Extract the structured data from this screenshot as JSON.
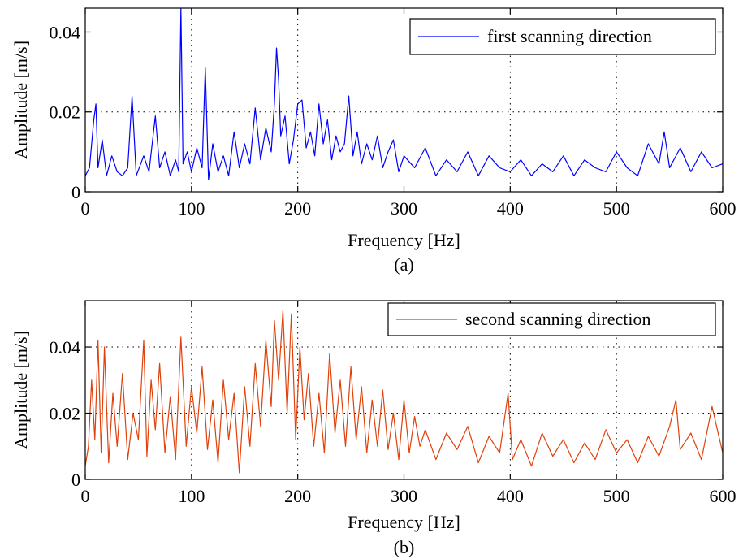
{
  "figure": {
    "caption_a": "(a)",
    "caption_b": "(b)"
  },
  "chart_data": [
    {
      "type": "line",
      "xlabel": "Frequency [Hz]",
      "ylabel": "Amplitude [m/s]",
      "xlim": [
        0,
        600
      ],
      "ylim": [
        0,
        0.046
      ],
      "xticks": [
        0,
        100,
        200,
        300,
        400,
        500,
        600
      ],
      "xtick_labels": [
        "0",
        "100",
        "200",
        "300",
        "400",
        "500",
        "600"
      ],
      "yticks": [
        0,
        0.02,
        0.04
      ],
      "ytick_labels": [
        "0",
        "0.02",
        "0.04"
      ],
      "grid": true,
      "legend": "top-right",
      "color": "#0000ff",
      "series": [
        {
          "name": "first scanning direction",
          "x": [
            0,
            4,
            8,
            10,
            12,
            16,
            20,
            25,
            30,
            35,
            40,
            44,
            48,
            55,
            60,
            66,
            70,
            75,
            80,
            85,
            88,
            90,
            92,
            96,
            100,
            105,
            110,
            113,
            116,
            120,
            125,
            130,
            135,
            140,
            145,
            150,
            155,
            160,
            165,
            170,
            175,
            178,
            180,
            182,
            184,
            188,
            192,
            196,
            200,
            204,
            208,
            212,
            216,
            220,
            224,
            228,
            232,
            236,
            240,
            244,
            248,
            252,
            256,
            260,
            265,
            270,
            275,
            280,
            285,
            290,
            295,
            300,
            310,
            320,
            330,
            340,
            350,
            360,
            370,
            380,
            390,
            400,
            410,
            420,
            430,
            440,
            450,
            460,
            470,
            480,
            490,
            500,
            510,
            520,
            530,
            540,
            545,
            550,
            560,
            570,
            580,
            590,
            600
          ],
          "y": [
            0.004,
            0.006,
            0.018,
            0.022,
            0.006,
            0.013,
            0.004,
            0.009,
            0.005,
            0.004,
            0.006,
            0.024,
            0.004,
            0.009,
            0.005,
            0.019,
            0.006,
            0.01,
            0.004,
            0.008,
            0.005,
            0.046,
            0.007,
            0.01,
            0.005,
            0.011,
            0.006,
            0.031,
            0.003,
            0.012,
            0.005,
            0.009,
            0.004,
            0.015,
            0.006,
            0.012,
            0.007,
            0.021,
            0.008,
            0.016,
            0.01,
            0.022,
            0.036,
            0.028,
            0.014,
            0.019,
            0.007,
            0.013,
            0.022,
            0.023,
            0.011,
            0.015,
            0.009,
            0.022,
            0.012,
            0.018,
            0.008,
            0.014,
            0.01,
            0.012,
            0.024,
            0.009,
            0.015,
            0.007,
            0.012,
            0.008,
            0.014,
            0.006,
            0.01,
            0.013,
            0.005,
            0.009,
            0.006,
            0.011,
            0.004,
            0.008,
            0.005,
            0.01,
            0.004,
            0.009,
            0.006,
            0.005,
            0.008,
            0.004,
            0.007,
            0.005,
            0.009,
            0.004,
            0.008,
            0.006,
            0.005,
            0.01,
            0.006,
            0.004,
            0.012,
            0.007,
            0.015,
            0.006,
            0.011,
            0.005,
            0.01,
            0.006,
            0.007
          ]
        }
      ]
    },
    {
      "type": "line",
      "xlabel": "Frequency [Hz]",
      "ylabel": "Amplitude [m/s]",
      "xlim": [
        0,
        600
      ],
      "ylim": [
        0,
        0.054
      ],
      "xticks": [
        0,
        100,
        200,
        300,
        400,
        500,
        600
      ],
      "xtick_labels": [
        "0",
        "100",
        "200",
        "300",
        "400",
        "500",
        "600"
      ],
      "yticks": [
        0,
        0.02,
        0.04
      ],
      "ytick_labels": [
        "0",
        "0.02",
        "0.04"
      ],
      "grid": true,
      "legend": "top-right",
      "color": "#e0400a",
      "series": [
        {
          "name": "second scanning direction",
          "x": [
            0,
            3,
            6,
            9,
            12,
            15,
            18,
            22,
            26,
            30,
            35,
            40,
            45,
            50,
            55,
            58,
            62,
            66,
            70,
            75,
            80,
            85,
            90,
            95,
            100,
            105,
            110,
            115,
            120,
            125,
            130,
            135,
            140,
            145,
            150,
            155,
            160,
            165,
            170,
            175,
            178,
            182,
            186,
            190,
            194,
            198,
            202,
            206,
            210,
            215,
            220,
            225,
            230,
            235,
            240,
            245,
            250,
            255,
            260,
            265,
            270,
            275,
            280,
            285,
            290,
            295,
            300,
            305,
            310,
            315,
            320,
            330,
            340,
            350,
            360,
            370,
            380,
            390,
            398,
            402,
            410,
            420,
            430,
            440,
            450,
            460,
            470,
            480,
            490,
            500,
            510,
            520,
            530,
            540,
            550,
            556,
            560,
            570,
            580,
            590,
            600
          ],
          "y": [
            0.004,
            0.01,
            0.03,
            0.012,
            0.042,
            0.008,
            0.04,
            0.005,
            0.026,
            0.01,
            0.032,
            0.006,
            0.02,
            0.012,
            0.042,
            0.007,
            0.03,
            0.015,
            0.035,
            0.008,
            0.025,
            0.006,
            0.043,
            0.01,
            0.028,
            0.014,
            0.034,
            0.009,
            0.024,
            0.005,
            0.03,
            0.012,
            0.026,
            0.002,
            0.028,
            0.01,
            0.035,
            0.016,
            0.042,
            0.022,
            0.048,
            0.03,
            0.051,
            0.02,
            0.05,
            0.012,
            0.04,
            0.018,
            0.032,
            0.01,
            0.026,
            0.008,
            0.038,
            0.014,
            0.03,
            0.01,
            0.034,
            0.012,
            0.028,
            0.008,
            0.024,
            0.01,
            0.027,
            0.009,
            0.02,
            0.006,
            0.024,
            0.008,
            0.019,
            0.01,
            0.015,
            0.006,
            0.014,
            0.009,
            0.016,
            0.005,
            0.013,
            0.008,
            0.026,
            0.006,
            0.012,
            0.004,
            0.014,
            0.007,
            0.012,
            0.005,
            0.011,
            0.006,
            0.015,
            0.008,
            0.012,
            0.005,
            0.013,
            0.007,
            0.016,
            0.024,
            0.009,
            0.014,
            0.006,
            0.022,
            0.008
          ]
        }
      ]
    }
  ]
}
